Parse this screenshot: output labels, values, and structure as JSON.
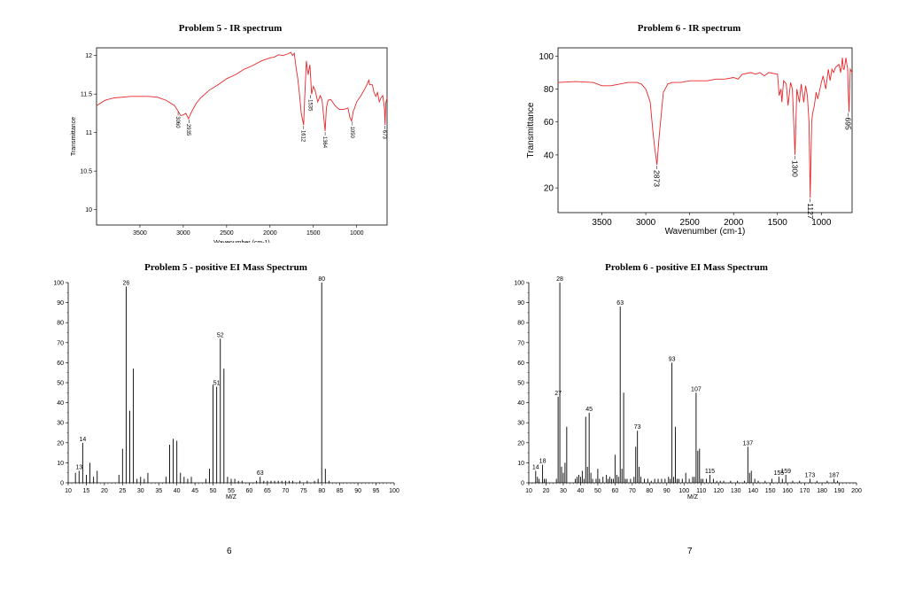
{
  "pages": {
    "left": "6",
    "right": "7"
  },
  "chart_data": [
    {
      "id": "ir5",
      "type": "line",
      "title": "Problem 5 - IR spectrum",
      "xlabel": "Wavenumber (cm-1)",
      "ylabel": "Transmittance",
      "xlim": [
        4000,
        650
      ],
      "ylim": [
        9.8,
        12.1
      ],
      "xticks": [
        3500,
        3000,
        2500,
        2000,
        1500,
        1000
      ],
      "yticks": [
        10,
        10.5,
        11,
        11.5,
        12
      ],
      "line_color": "#e8262a",
      "series": [
        {
          "x": [
            4000,
            3900,
            3800,
            3700,
            3600,
            3500,
            3400,
            3300,
            3200,
            3100,
            3060,
            3030,
            3000,
            2970,
            2940,
            2900,
            2850,
            2800,
            2700,
            2600,
            2500,
            2400,
            2300,
            2200,
            2100,
            2000,
            1950,
            1900,
            1850,
            1800,
            1760,
            1740,
            1720,
            1700,
            1680,
            1660,
            1640,
            1612,
            1600,
            1580,
            1560,
            1540,
            1520,
            1500,
            1480,
            1450,
            1420,
            1400,
            1380,
            1364,
            1350,
            1330,
            1300,
            1280,
            1250,
            1200,
            1150,
            1100,
            1080,
            1060,
            1050,
            1040,
            1030,
            1000,
            950,
            900,
            880,
            860,
            850,
            820,
            800,
            780,
            760,
            740,
            720,
            700,
            690,
            680,
            673,
            665,
            650
          ],
          "y": [
            11.35,
            11.42,
            11.45,
            11.46,
            11.47,
            11.47,
            11.47,
            11.46,
            11.42,
            11.35,
            11.28,
            11.22,
            11.23,
            11.25,
            11.18,
            11.28,
            11.38,
            11.45,
            11.55,
            11.62,
            11.7,
            11.75,
            11.82,
            11.87,
            11.93,
            11.97,
            11.98,
            12.01,
            12,
            12.02,
            12.04,
            12.0,
            12.03,
            11.85,
            11.7,
            11.5,
            11.25,
            11.1,
            11.45,
            11.93,
            11.75,
            11.88,
            11.5,
            11.6,
            11.55,
            11.4,
            11.48,
            11.42,
            11.2,
            11.02,
            11.32,
            11.42,
            11.43,
            11.4,
            11.35,
            11.3,
            11.3,
            11.32,
            11.2,
            11.15,
            11.2,
            11.28,
            11.3,
            11.4,
            11.48,
            11.58,
            11.63,
            11.68,
            11.62,
            11.62,
            11.52,
            11.47,
            11.52,
            11.4,
            11.45,
            11.48,
            11.4,
            11.3,
            11.1,
            11.38,
            11.45
          ]
        }
      ],
      "annotations": [
        {
          "x": 3060,
          "y": 11.28,
          "label": "3060"
        },
        {
          "x": 2935,
          "y": 11.18,
          "label": "2935"
        },
        {
          "x": 1612,
          "y": 11.1,
          "label": "1612"
        },
        {
          "x": 1535,
          "y": 11.5,
          "label": "1535"
        },
        {
          "x": 1364,
          "y": 11.02,
          "label": "1364"
        },
        {
          "x": 1050,
          "y": 11.15,
          "label": "1050"
        },
        {
          "x": 673,
          "y": 11.1,
          "label": "673"
        }
      ]
    },
    {
      "id": "ir6",
      "type": "line",
      "title": "Problem 6 - IR spectrum",
      "xlabel": "Wavenumber (cm-1)",
      "ylabel": "Transmittance",
      "xlim": [
        4000,
        650
      ],
      "ylim": [
        5,
        105
      ],
      "xticks": [
        3500,
        3000,
        2500,
        2000,
        1500,
        1000
      ],
      "yticks": [
        20,
        40,
        60,
        80,
        100
      ],
      "line_color": "#e8262a",
      "series": [
        {
          "x": [
            4000,
            3800,
            3600,
            3500,
            3400,
            3300,
            3200,
            3100,
            3050,
            3000,
            2950,
            2920,
            2900,
            2873,
            2850,
            2800,
            2750,
            2700,
            2600,
            2500,
            2400,
            2300,
            2200,
            2100,
            2000,
            1950,
            1900,
            1800,
            1750,
            1700,
            1650,
            1600,
            1500,
            1480,
            1460,
            1450,
            1430,
            1400,
            1380,
            1350,
            1330,
            1300,
            1280,
            1250,
            1230,
            1200,
            1180,
            1160,
            1140,
            1127,
            1110,
            1100,
            1080,
            1060,
            1040,
            1000,
            980,
            950,
            920,
            900,
            880,
            860,
            840,
            800,
            780,
            760,
            750,
            740,
            720,
            710,
            700,
            695,
            685,
            670,
            650
          ],
          "y": [
            84,
            84.5,
            84,
            82,
            82,
            83,
            84,
            84,
            83,
            80,
            72,
            55,
            45,
            34,
            50,
            78,
            83,
            84,
            84,
            85,
            85,
            85,
            86,
            86,
            87,
            86,
            89,
            90,
            89,
            90,
            88,
            90,
            89,
            76,
            80,
            72,
            85,
            83,
            70,
            84,
            80,
            40,
            80,
            72,
            83,
            72,
            82,
            76,
            60,
            14,
            60,
            65,
            70,
            78,
            74,
            84,
            88,
            80,
            92,
            85,
            92,
            90,
            93,
            95,
            90,
            99,
            92,
            92,
            99,
            95,
            92,
            82,
            66,
            92,
            90
          ]
        }
      ],
      "annotations": [
        {
          "x": 2873,
          "y": 34,
          "label": "2873"
        },
        {
          "x": 1300,
          "y": 40,
          "label": "1300"
        },
        {
          "x": 1127,
          "y": 14,
          "label": "1127"
        },
        {
          "x": 695,
          "y": 66,
          "label": "695"
        }
      ]
    },
    {
      "id": "ms5",
      "type": "bar",
      "title": "Problem 5 - positive EI Mass Spectrum",
      "xlabel": "M/Z",
      "xlim": [
        10,
        100
      ],
      "ylim": [
        0,
        100
      ],
      "xticks": [
        10,
        15,
        20,
        25,
        30,
        35,
        40,
        45,
        50,
        55,
        60,
        65,
        70,
        75,
        80,
        85,
        90,
        95,
        100
      ],
      "yticks": [
        0,
        10,
        20,
        30,
        40,
        50,
        60,
        70,
        80,
        90,
        100
      ],
      "series": [
        {
          "x": [
            12,
            13,
            14,
            15,
            16,
            17,
            18,
            24,
            25,
            26,
            27,
            28,
            29,
            30,
            31,
            32,
            37,
            38,
            39,
            40,
            41,
            42,
            43,
            44,
            48,
            49,
            50,
            51,
            52,
            53,
            54,
            55,
            56,
            57,
            58,
            62,
            63,
            64,
            65,
            66,
            67,
            68,
            69,
            70,
            71,
            72,
            74,
            76,
            78,
            79,
            80,
            81,
            82
          ],
          "y": [
            5,
            6,
            20,
            4,
            10,
            3,
            6,
            4,
            17,
            98,
            36,
            57,
            2,
            3,
            2,
            5,
            3,
            19,
            22,
            21,
            5,
            3,
            2,
            3,
            2,
            7,
            49,
            48,
            72,
            57,
            3,
            2,
            2,
            1,
            1,
            1,
            3,
            1,
            1,
            1,
            1,
            1,
            1,
            1,
            1,
            1,
            1,
            1,
            1,
            2,
            100,
            7,
            1
          ]
        }
      ],
      "annotations": [
        {
          "x": 13,
          "y": 6,
          "label": "13"
        },
        {
          "x": 14,
          "y": 20,
          "label": "14"
        },
        {
          "x": 26,
          "y": 98,
          "label": "26"
        },
        {
          "x": 51,
          "y": 48,
          "label": "51"
        },
        {
          "x": 52,
          "y": 72,
          "label": "52"
        },
        {
          "x": 63,
          "y": 3,
          "label": "63"
        },
        {
          "x": 80,
          "y": 100,
          "label": "80"
        }
      ]
    },
    {
      "id": "ms6",
      "type": "bar",
      "title": "Problem 6 - positive EI Mass Spectrum",
      "xlabel": "M/Z",
      "xlim": [
        10,
        200
      ],
      "ylim": [
        0,
        100
      ],
      "xticks": [
        10,
        20,
        30,
        40,
        50,
        60,
        70,
        80,
        90,
        100,
        110,
        120,
        130,
        140,
        150,
        160,
        170,
        180,
        190,
        200
      ],
      "yticks": [
        0,
        10,
        20,
        30,
        40,
        50,
        60,
        70,
        80,
        90,
        100
      ],
      "series": [
        {
          "x": [
            14,
            15,
            16,
            18,
            19,
            20,
            26,
            27,
            28,
            29,
            30,
            31,
            32,
            37,
            38,
            39,
            40,
            41,
            42,
            43,
            44,
            45,
            46,
            47,
            49,
            50,
            51,
            53,
            55,
            56,
            57,
            58,
            59,
            60,
            61,
            62,
            63,
            64,
            65,
            66,
            67,
            69,
            71,
            72,
            73,
            74,
            75,
            77,
            79,
            81,
            83,
            85,
            87,
            89,
            91,
            92,
            93,
            94,
            95,
            96,
            97,
            99,
            101,
            103,
            105,
            106,
            107,
            108,
            109,
            110,
            111,
            113,
            115,
            117,
            119,
            121,
            123,
            127,
            131,
            135,
            137,
            138,
            139,
            141,
            143,
            147,
            151,
            155,
            157,
            159,
            163,
            167,
            173,
            177,
            183,
            187,
            189
          ],
          "y": [
            6,
            3,
            2,
            9,
            2,
            2,
            2,
            43,
            100,
            8,
            5,
            10,
            28,
            2,
            3,
            4,
            3,
            6,
            2,
            33,
            8,
            35,
            5,
            2,
            2,
            7,
            2,
            3,
            4,
            2,
            3,
            2,
            2,
            14,
            4,
            3,
            88,
            7,
            45,
            2,
            2,
            2,
            3,
            18,
            26,
            8,
            3,
            2,
            2,
            1,
            2,
            2,
            2,
            2,
            3,
            2,
            60,
            3,
            28,
            2,
            2,
            2,
            5,
            2,
            3,
            3,
            45,
            16,
            17,
            2,
            2,
            2,
            4,
            2,
            1,
            1,
            1,
            1,
            1,
            1,
            18,
            5,
            6,
            2,
            1,
            1,
            2,
            3,
            2,
            4,
            1,
            1,
            2,
            1,
            1,
            2,
            1
          ]
        }
      ],
      "annotations": [
        {
          "x": 14,
          "y": 6,
          "label": "14"
        },
        {
          "x": 18,
          "y": 9,
          "label": "18"
        },
        {
          "x": 27,
          "y": 43,
          "label": "27"
        },
        {
          "x": 28,
          "y": 100,
          "label": "28"
        },
        {
          "x": 45,
          "y": 35,
          "label": "45"
        },
        {
          "x": 63,
          "y": 88,
          "label": "63"
        },
        {
          "x": 73,
          "y": 26,
          "label": "73"
        },
        {
          "x": 93,
          "y": 60,
          "label": "93"
        },
        {
          "x": 107,
          "y": 45,
          "label": "107"
        },
        {
          "x": 115,
          "y": 4,
          "label": "115"
        },
        {
          "x": 137,
          "y": 18,
          "label": "137"
        },
        {
          "x": 155,
          "y": 3,
          "label": "155"
        },
        {
          "x": 159,
          "y": 4,
          "label": "159"
        },
        {
          "x": 173,
          "y": 2,
          "label": "173"
        },
        {
          "x": 187,
          "y": 2,
          "label": "187"
        }
      ]
    }
  ]
}
